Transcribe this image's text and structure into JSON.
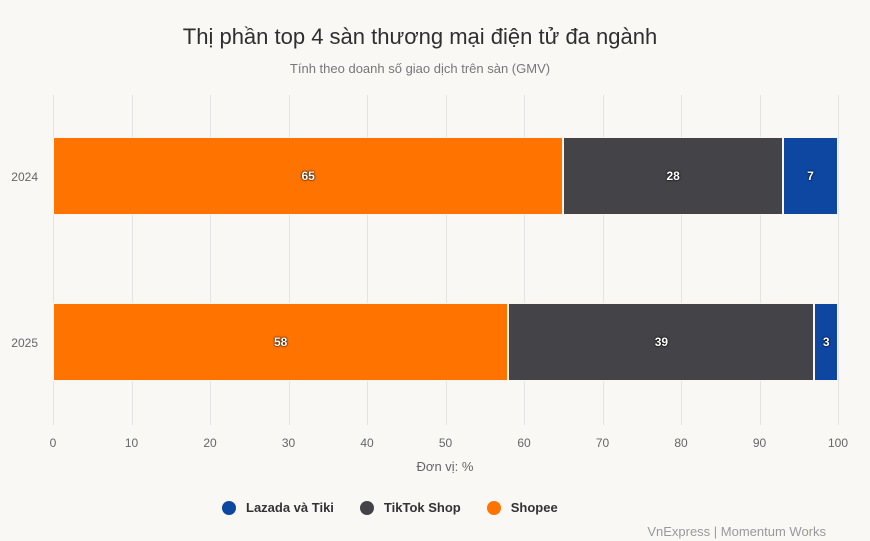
{
  "header": {
    "title": "Thị phần top 4 sàn thương mại điện tử đa ngành",
    "subtitle": "Tính theo doanh số giao dịch trên sàn (GMV)"
  },
  "axis": {
    "x_ticks": [
      "0",
      "10",
      "20",
      "30",
      "40",
      "50",
      "60",
      "70",
      "80",
      "90",
      "100"
    ],
    "x_title": "Đơn vị: %",
    "y_labels": [
      "2024",
      "2025"
    ]
  },
  "legend": [
    {
      "label": "Lazada và Tiki",
      "color": "#0d47a1"
    },
    {
      "label": "TikTok Shop",
      "color": "#434348"
    },
    {
      "label": "Shopee",
      "color": "#ff7300"
    }
  ],
  "credit": "VnExpress | Momentum Works",
  "bars": [
    {
      "year": "2024",
      "segments": [
        {
          "name": "Shopee",
          "value": 65,
          "label": "65",
          "color": "#ff7300"
        },
        {
          "name": "TikTok Shop",
          "value": 28,
          "label": "28",
          "color": "#434348"
        },
        {
          "name": "Lazada và Tiki",
          "value": 7,
          "label": "7",
          "color": "#0d47a1"
        }
      ]
    },
    {
      "year": "2025",
      "segments": [
        {
          "name": "Shopee",
          "value": 58,
          "label": "58",
          "color": "#ff7300"
        },
        {
          "name": "TikTok Shop",
          "value": 39,
          "label": "39",
          "color": "#434348"
        },
        {
          "name": "Lazada và Tiki",
          "value": 3,
          "label": "3",
          "color": "#0d47a1"
        }
      ]
    }
  ],
  "chart_data": {
    "type": "bar",
    "orientation": "horizontal",
    "stacked": true,
    "title": "Thị phần top 4 sàn thương mại điện tử đa ngành",
    "subtitle": "Tính theo doanh số giao dịch trên sàn (GMV)",
    "categories": [
      "2024",
      "2025"
    ],
    "series": [
      {
        "name": "Shopee",
        "values": [
          65,
          58
        ],
        "color": "#ff7300"
      },
      {
        "name": "TikTok Shop",
        "values": [
          28,
          39
        ],
        "color": "#434348"
      },
      {
        "name": "Lazada và Tiki",
        "values": [
          7,
          3
        ],
        "color": "#0d47a1"
      }
    ],
    "xlabel": "Đơn vị: %",
    "ylabel": "",
    "xlim": [
      0,
      100
    ],
    "x_ticks": [
      0,
      10,
      20,
      30,
      40,
      50,
      60,
      70,
      80,
      90,
      100
    ],
    "grid": true,
    "legend_position": "bottom",
    "data_labels": true,
    "source": "VnExpress | Momentum Works"
  }
}
